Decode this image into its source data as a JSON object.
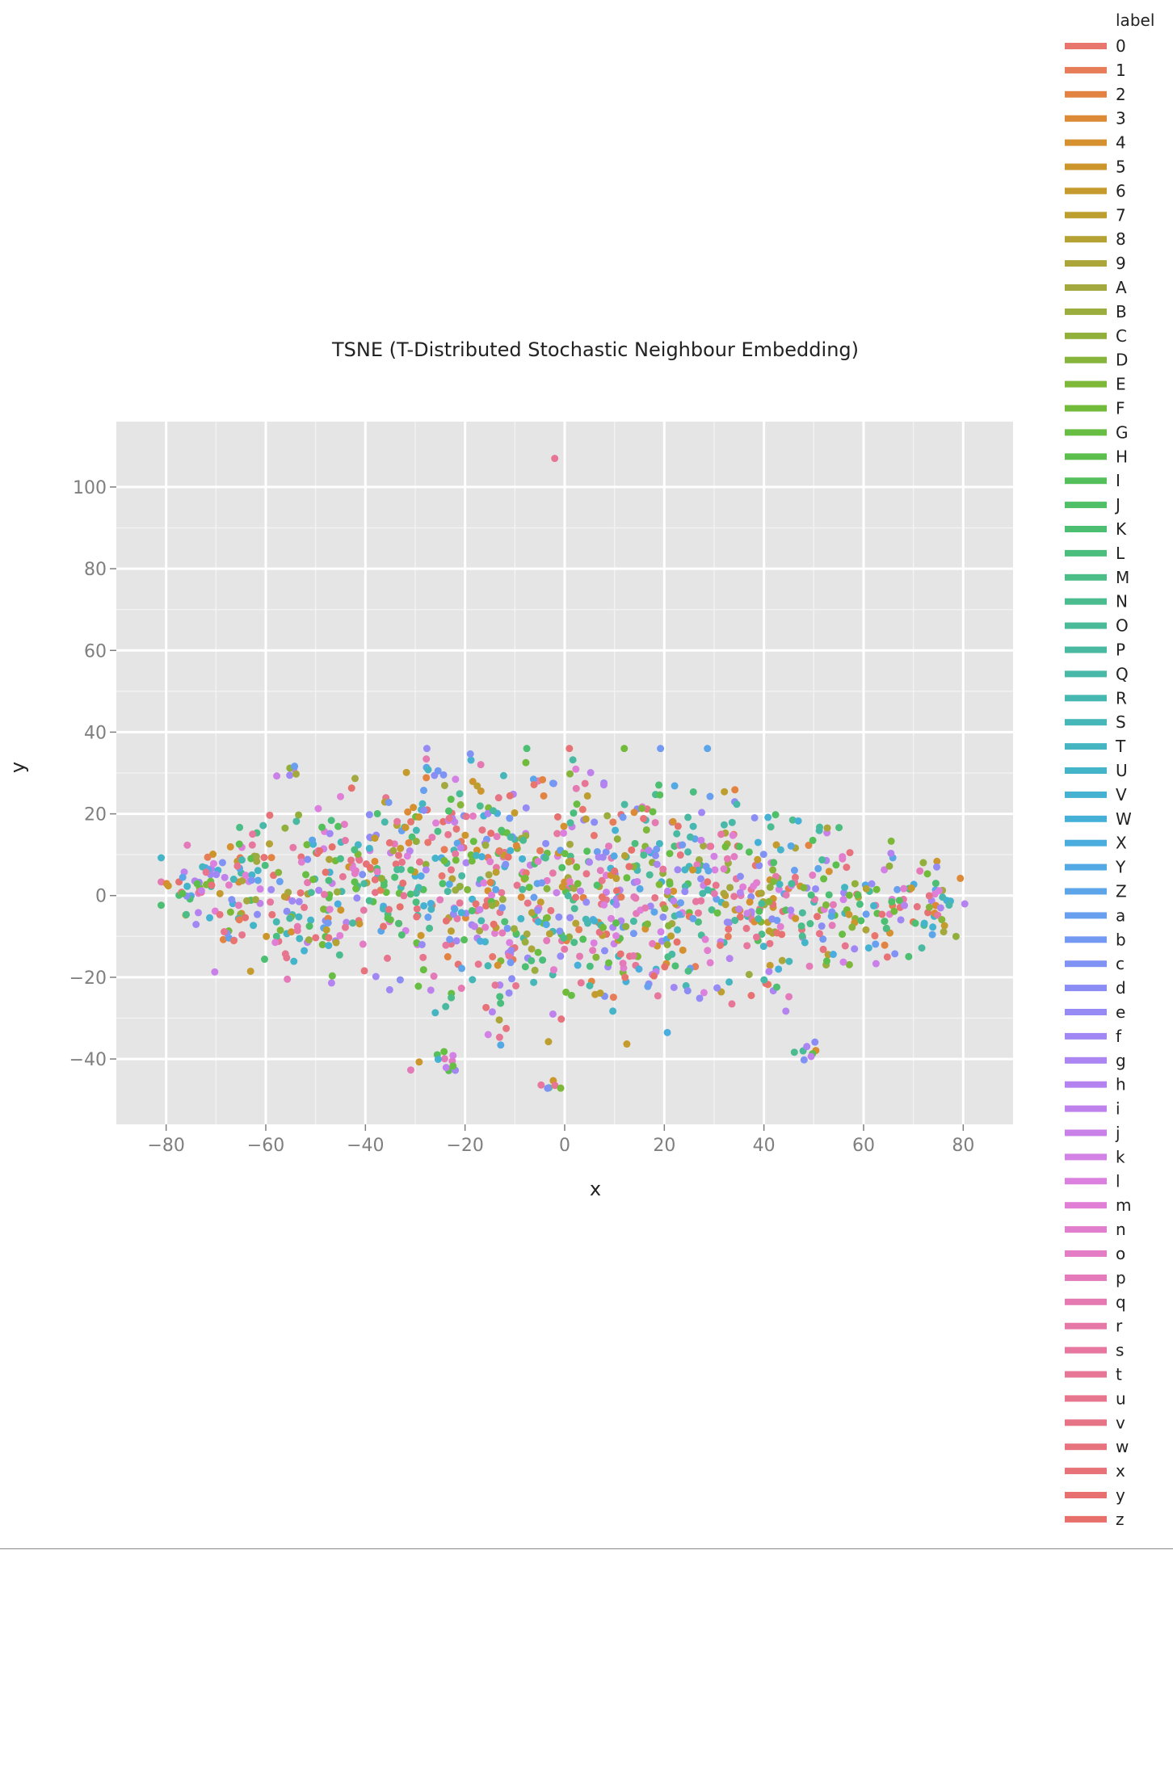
{
  "chart_data": {
    "type": "scatter",
    "title": "TSNE (T-Distributed Stochastic Neighbour Embedding)",
    "xlabel": "x",
    "ylabel": "y",
    "xlim": [
      -90,
      90
    ],
    "ylim": [
      -56,
      116
    ],
    "x_ticks": [
      -80,
      -60,
      -40,
      -20,
      0,
      20,
      40,
      60,
      80
    ],
    "x_tick_labels": [
      "−80",
      "−60",
      "−40",
      "−20",
      "0",
      "20",
      "40",
      "60",
      "80"
    ],
    "y_ticks": [
      100,
      80,
      60,
      40,
      20,
      0,
      -20,
      -40
    ],
    "y_tick_labels": [
      "100",
      "80",
      "60",
      "40",
      "20",
      "0",
      "−20",
      "−40"
    ],
    "grid": true,
    "legend_title": "label",
    "legend_position": "right",
    "labels": [
      "0",
      "1",
      "2",
      "3",
      "4",
      "5",
      "6",
      "7",
      "8",
      "9",
      "A",
      "B",
      "C",
      "D",
      "E",
      "F",
      "G",
      "H",
      "I",
      "J",
      "K",
      "L",
      "M",
      "N",
      "O",
      "P",
      "Q",
      "R",
      "S",
      "T",
      "U",
      "V",
      "W",
      "X",
      "Y",
      "Z",
      "a",
      "b",
      "c",
      "d",
      "e",
      "f",
      "g",
      "h",
      "i",
      "j",
      "k",
      "l",
      "m",
      "n",
      "o",
      "p",
      "q",
      "r",
      "s",
      "t",
      "u",
      "v",
      "w",
      "x",
      "y",
      "z"
    ],
    "palette": [
      "#e8766d",
      "#e67d58",
      "#e38342",
      "#dc8a35",
      "#d5902f",
      "#cd962d",
      "#c49b2c",
      "#bc9f2f",
      "#b4a334",
      "#aca63a",
      "#a3a93f",
      "#9aad3e",
      "#91b03b",
      "#87b43b",
      "#7db838",
      "#72bb3a",
      "#67be42",
      "#5cbf4d",
      "#54c05b",
      "#4fc068",
      "#4cbf73",
      "#4bbe7d",
      "#4bbd86",
      "#4bbc8f",
      "#4abb98",
      "#49baa1",
      "#48b9a9",
      "#47b8b1",
      "#46b7b9",
      "#45b6c1",
      "#44b4c9",
      "#44b2d0",
      "#45b0d7",
      "#4aadde",
      "#53a9e4",
      "#5da5e9",
      "#689fee",
      "#7499f2",
      "#8093f4",
      "#8b8df5",
      "#968af5",
      "#a187f4",
      "#ab85f2",
      "#b583ef",
      "#bf82ec",
      "#c981e8",
      "#d381e4",
      "#dc80df",
      "#e17fd7",
      "#e27ece",
      "#e37cc4",
      "#e47aba",
      "#e579b1",
      "#e678a8",
      "#e7779f",
      "#e77696",
      "#e7758e",
      "#e77486",
      "#e7737e",
      "#e77277",
      "#e77170",
      "#e7706b"
    ],
    "points_note": "",
    "clusters": [
      {
        "cx": -75,
        "cy": 3,
        "sx": 4,
        "sy": 5,
        "n": 40
      },
      {
        "cx": -62,
        "cy": 0,
        "sx": 6,
        "sy": 9,
        "n": 90
      },
      {
        "cx": -45,
        "cy": 0,
        "sx": 7,
        "sy": 10,
        "n": 120
      },
      {
        "cx": -30,
        "cy": 5,
        "sx": 7,
        "sy": 13,
        "n": 150
      },
      {
        "cx": -15,
        "cy": 3,
        "sx": 7,
        "sy": 15,
        "n": 170
      },
      {
        "cx": 0,
        "cy": 0,
        "sx": 7,
        "sy": 15,
        "n": 160
      },
      {
        "cx": 15,
        "cy": 2,
        "sx": 7,
        "sy": 15,
        "n": 150
      },
      {
        "cx": 30,
        "cy": 0,
        "sx": 7,
        "sy": 13,
        "n": 140
      },
      {
        "cx": 45,
        "cy": -2,
        "sx": 7,
        "sy": 10,
        "n": 110
      },
      {
        "cx": 60,
        "cy": -3,
        "sx": 6,
        "sy": 8,
        "n": 80
      },
      {
        "cx": 74,
        "cy": -2,
        "sx": 4,
        "sy": 6,
        "n": 40
      },
      {
        "cx": -55,
        "cy": 30,
        "sx": 1,
        "sy": 1,
        "n": 6
      },
      {
        "cx": -2,
        "cy": -46,
        "sx": 1.5,
        "sy": 1,
        "n": 6
      },
      {
        "cx": -25,
        "cy": -40,
        "sx": 3,
        "sy": 2,
        "n": 12
      },
      {
        "cx": 48,
        "cy": -37,
        "sx": 2,
        "sy": 1.5,
        "n": 8
      },
      {
        "cx": -2,
        "cy": 107,
        "sx": 0,
        "sy": 0,
        "n": 1
      }
    ]
  }
}
